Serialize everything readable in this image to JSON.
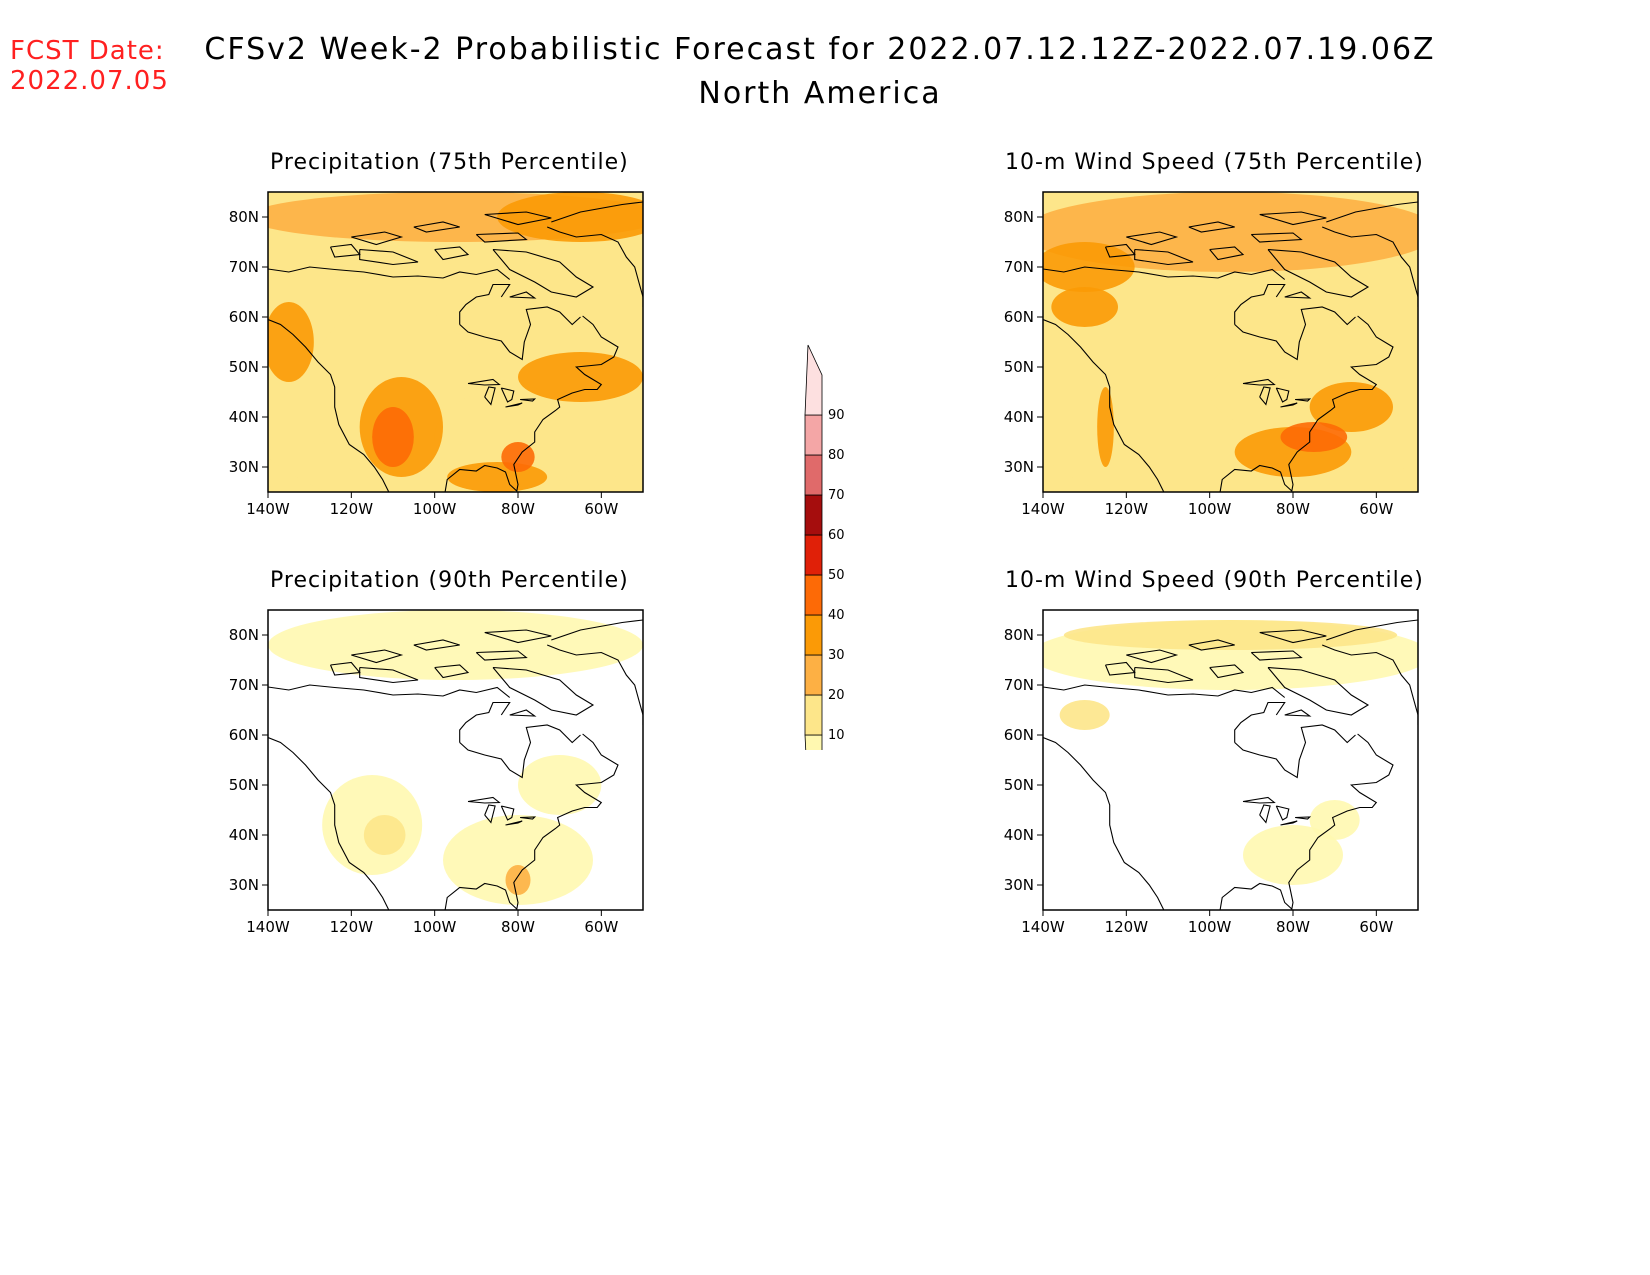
{
  "header": {
    "fcst_label": "FCST Date:",
    "fcst_date": "2022.07.05",
    "title": "CFSv2 Week-2 Probabilistic Forecast for 2022.07.12.12Z-2022.07.19.06Z",
    "subtitle": "North America"
  },
  "axes": {
    "lon_ticks": [
      "140W",
      "120W",
      "100W",
      "80W",
      "60W"
    ],
    "lat_ticks": [
      "80N",
      "70N",
      "60N",
      "50N",
      "40N",
      "30N"
    ],
    "lon_range": [
      -140,
      -50
    ],
    "lat_range": [
      25,
      85
    ]
  },
  "panels": [
    {
      "title": "Precipitation (75th Percentile)"
    },
    {
      "title": "10-m Wind Speed (75th Percentile)"
    },
    {
      "title": "Precipitation (90th Percentile)"
    },
    {
      "title": "10-m Wind Speed (90th Percentile)"
    }
  ],
  "colorbar": {
    "labels": [
      "10",
      "20",
      "30",
      "40",
      "50",
      "60",
      "70",
      "80",
      "90"
    ],
    "colors": [
      "#fff8b0",
      "#fde68a",
      "#fdb044",
      "#fb9a06",
      "#fd6a06",
      "#e02008",
      "#a50d0d",
      "#e06a6a",
      "#f4a6a6",
      "#fde0e0"
    ]
  }
}
